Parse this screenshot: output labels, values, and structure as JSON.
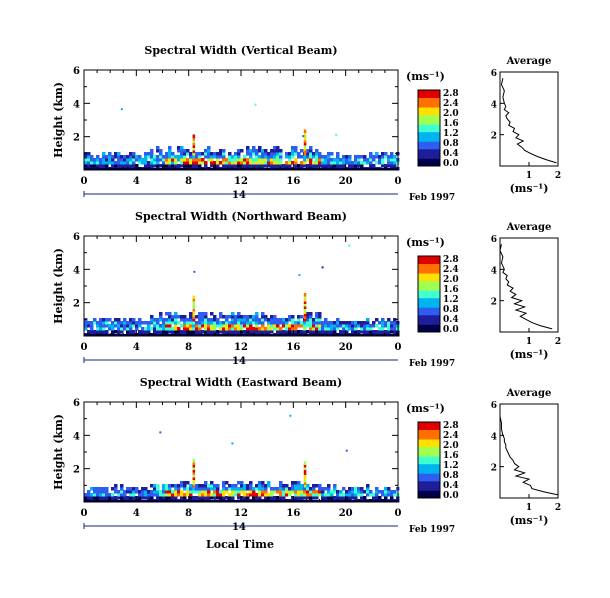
{
  "figure": {
    "date_label": "Feb 1997",
    "day_label": "14",
    "bottom_xlabel": "Local Time"
  },
  "colorbar_ticks": [
    "0.0",
    "0.4",
    "0.8",
    "1.2",
    "1.6",
    "2.0",
    "2.4",
    "2.8"
  ],
  "colorbar_ticks_top": [
    "2.8",
    "2.4",
    "2.0",
    "1.6",
    "1.2",
    "0.8",
    "0.4",
    "0.0"
  ],
  "colormap": [
    "#00004a",
    "#1e1e9a",
    "#2d5ef0",
    "#00b4f0",
    "#40ffd0",
    "#a0ff50",
    "#ffe000",
    "#ff7000",
    "#e00000"
  ],
  "chart_data": [
    {
      "type": "heatmap",
      "title": "Spectral Width (Vertical Beam)",
      "ylabel": "Height (km)",
      "xlabel": "",
      "xticks": [
        "0",
        "4",
        "8",
        "12",
        "16",
        "20",
        "0"
      ],
      "yticks": [
        "2",
        "4",
        "6"
      ],
      "xlim": [
        0,
        24
      ],
      "ylim": [
        0,
        6
      ],
      "colorbar_label": "(ms⁻¹)",
      "colorbar_range": [
        0.0,
        2.8
      ],
      "spikes": [
        {
          "x": 8.3,
          "top": 2.0
        },
        {
          "x": 16.8,
          "top": 2.3
        }
      ],
      "echo_top_km": 0.9,
      "profile": {
        "title": "Average",
        "xlabel": "(ms⁻¹)",
        "xlim": [
          0,
          2
        ],
        "xticks": [
          "1",
          "2"
        ],
        "yticks": [
          "2",
          "4",
          "6"
        ],
        "height_km": [
          0.2,
          0.4,
          0.6,
          0.8,
          1.0,
          1.2,
          1.4,
          1.6,
          1.8,
          2.0,
          2.2,
          2.4,
          2.6,
          2.8,
          3.0,
          3.2,
          3.4,
          3.6,
          3.8,
          4.0,
          4.4,
          4.8,
          5.2,
          5.6
        ],
        "width_ms": [
          1.95,
          1.6,
          1.3,
          1.05,
          0.85,
          0.75,
          0.6,
          0.8,
          0.55,
          0.65,
          0.45,
          0.5,
          0.3,
          0.35,
          0.25,
          0.2,
          0.3,
          0.15,
          0.2,
          0.15,
          0.1,
          0.15,
          0.05,
          0.1
        ]
      }
    },
    {
      "type": "heatmap",
      "title": "Spectral Width (Northward Beam)",
      "ylabel": "Height (km)",
      "xlabel": "",
      "xticks": [
        "0",
        "4",
        "8",
        "12",
        "16",
        "20",
        "0"
      ],
      "yticks": [
        "2",
        "4",
        "6"
      ],
      "xlim": [
        0,
        24
      ],
      "ylim": [
        0,
        6
      ],
      "colorbar_label": "(ms⁻¹)",
      "colorbar_range": [
        0.0,
        2.8
      ],
      "spikes": [
        {
          "x": 8.3,
          "top": 2.3
        },
        {
          "x": 16.8,
          "top": 2.5
        }
      ],
      "echo_top_km": 0.9,
      "profile": {
        "title": "Average",
        "xlabel": "(ms⁻¹)",
        "xlim": [
          0,
          2
        ],
        "xticks": [
          "1",
          "2"
        ],
        "yticks": [
          "2",
          "4",
          "6"
        ],
        "height_km": [
          0.2,
          0.4,
          0.6,
          0.8,
          1.0,
          1.2,
          1.4,
          1.6,
          1.8,
          2.0,
          2.2,
          2.4,
          2.6,
          2.8,
          3.0,
          3.2,
          3.4,
          3.6,
          3.8,
          4.0,
          4.4,
          4.8,
          5.2,
          5.6
        ],
        "width_ms": [
          1.8,
          1.4,
          1.1,
          0.9,
          0.7,
          0.9,
          0.55,
          0.85,
          0.5,
          0.75,
          0.4,
          0.55,
          0.35,
          0.45,
          0.25,
          0.3,
          0.2,
          0.25,
          0.1,
          0.15,
          0.05,
          0.1,
          0.0,
          0.05
        ]
      }
    },
    {
      "type": "heatmap",
      "title": "Spectral Width (Eastward Beam)",
      "ylabel": "Height (km)",
      "xlabel": "Local Time",
      "xticks": [
        "0",
        "4",
        "8",
        "12",
        "16",
        "20",
        "0"
      ],
      "yticks": [
        "2",
        "4",
        "6"
      ],
      "xlim": [
        0,
        24
      ],
      "ylim": [
        0,
        6
      ],
      "colorbar_label": "(ms⁻¹)",
      "colorbar_range": [
        0.0,
        2.8
      ],
      "spikes": [
        {
          "x": 8.3,
          "top": 2.5
        },
        {
          "x": 16.8,
          "top": 2.3
        }
      ],
      "echo_top_km": 0.8,
      "profile": {
        "title": "Average",
        "xlabel": "(ms⁻¹)",
        "xlim": [
          0,
          2
        ],
        "xticks": [
          "1",
          "2"
        ],
        "yticks": [
          "2",
          "4",
          "6"
        ],
        "height_km": [
          0.2,
          0.4,
          0.6,
          0.8,
          1.0,
          1.2,
          1.4,
          1.6,
          1.8,
          2.0,
          2.2,
          2.4,
          2.6,
          2.8,
          3.0,
          3.2,
          3.4,
          3.6,
          3.8,
          4.0,
          4.4,
          4.8,
          5.2
        ],
        "width_ms": [
          2.0,
          1.5,
          1.1,
          1.05,
          0.8,
          1.0,
          0.55,
          0.85,
          0.5,
          0.65,
          0.5,
          0.45,
          0.35,
          0.3,
          0.25,
          0.2,
          0.2,
          0.15,
          0.15,
          0.1,
          0.05,
          0.05,
          0.0
        ]
      }
    }
  ]
}
